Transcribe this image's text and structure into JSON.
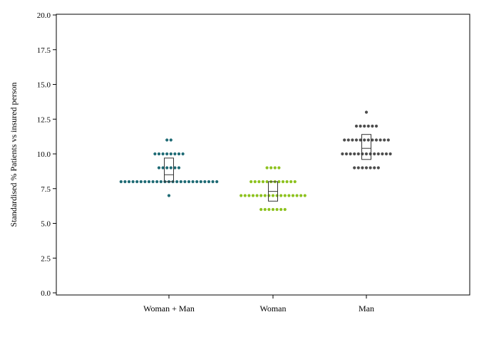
{
  "chart_data": {
    "type": "scatter",
    "subtype": "dot-plot with box",
    "title": "",
    "xlabel": "",
    "ylabel": "Standardised % Patients vs insured person",
    "ylim": [
      0,
      20
    ],
    "yticks": [
      "0.0",
      "2.5",
      "5.0",
      "7.5",
      "10.0",
      "12.5",
      "15.0",
      "17.5",
      "20.0"
    ],
    "grid": false,
    "categories": [
      "Woman + Man",
      "Woman",
      "Man"
    ],
    "series": [
      {
        "category": "Woman + Man",
        "color": "#1f6b75",
        "rows": [
          {
            "y": 11,
            "count": 2
          },
          {
            "y": 10,
            "count": 8
          },
          {
            "y": 9,
            "count": 6
          },
          {
            "y": 8,
            "count": 25
          },
          {
            "y": 7,
            "count": 1
          }
        ],
        "box": {
          "q1": 8.0,
          "median": 8.5,
          "q3": 9.7
        }
      },
      {
        "category": "Woman",
        "color": "#8dc21f",
        "rows": [
          {
            "y": 9,
            "count": 4
          },
          {
            "y": 8,
            "count": 12
          },
          {
            "y": 7,
            "count": 17
          },
          {
            "y": 6,
            "count": 7
          }
        ],
        "box": {
          "q1": 6.6,
          "median": 7.3,
          "q3": 8.0
        }
      },
      {
        "category": "Man",
        "color": "#4d4d4d",
        "rows": [
          {
            "y": 13,
            "count": 1
          },
          {
            "y": 12,
            "count": 6
          },
          {
            "y": 11,
            "count": 12
          },
          {
            "y": 10,
            "count": 13
          },
          {
            "y": 9,
            "count": 7
          }
        ],
        "box": {
          "q1": 9.6,
          "median": 10.4,
          "q3": 11.4
        }
      }
    ]
  }
}
